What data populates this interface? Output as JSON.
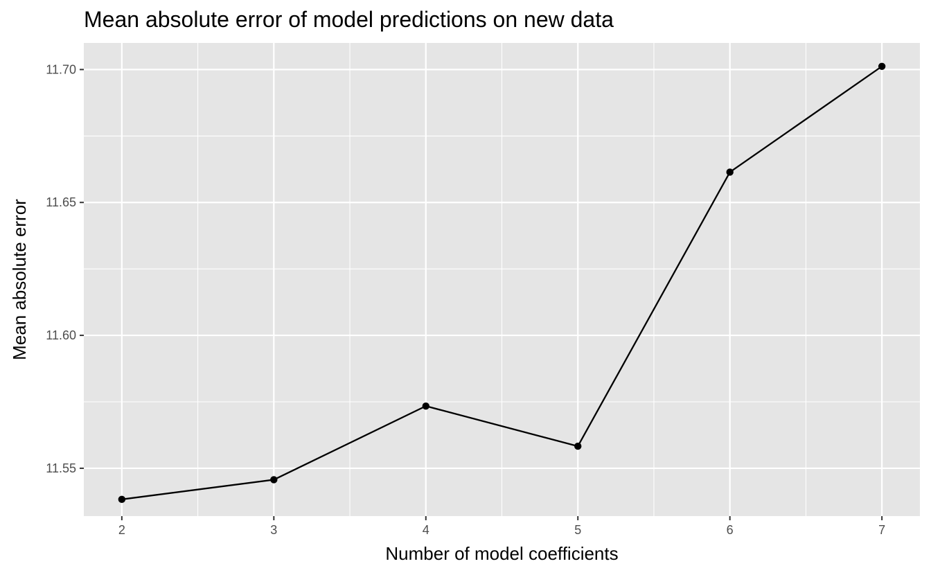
{
  "chart_data": {
    "type": "line",
    "title": "Mean absolute error of model predictions on new data",
    "xlabel": "Number of model coefficients",
    "ylabel": "Mean absolute error",
    "x": [
      2,
      3,
      4,
      5,
      6,
      7
    ],
    "series": [
      {
        "values": [
          11.5383,
          11.5457,
          11.5734,
          11.5583,
          11.6614,
          11.7012
        ]
      }
    ],
    "xlim": [
      1.75,
      7.25
    ],
    "ylim": [
      11.532,
      11.71
    ],
    "x_ticks": [
      "2",
      "3",
      "4",
      "5",
      "6",
      "7"
    ],
    "y_ticks": [
      "11.55",
      "11.60",
      "11.65",
      "11.70"
    ],
    "grid": true,
    "markers": true,
    "colors": {
      "panel": "#E5E5E5",
      "grid": "#FFFFFF",
      "line": "#000000"
    }
  }
}
